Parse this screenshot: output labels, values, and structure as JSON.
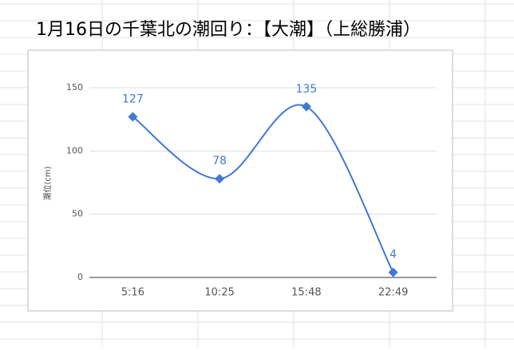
{
  "chart_data": {
    "type": "line",
    "title": "1月16日の千葉北の潮回り：【大潮】（上総勝浦）",
    "y_label": "潮位(cm)",
    "categories": [
      "5:16",
      "10:25",
      "15:48",
      "22:49"
    ],
    "values": [
      127,
      78,
      135,
      4
    ],
    "color": "#3f78d6",
    "ylim": [
      0,
      150
    ],
    "yticks": [
      0,
      50,
      100,
      150
    ],
    "grid": true,
    "smooth": true,
    "data_labels": true
  }
}
